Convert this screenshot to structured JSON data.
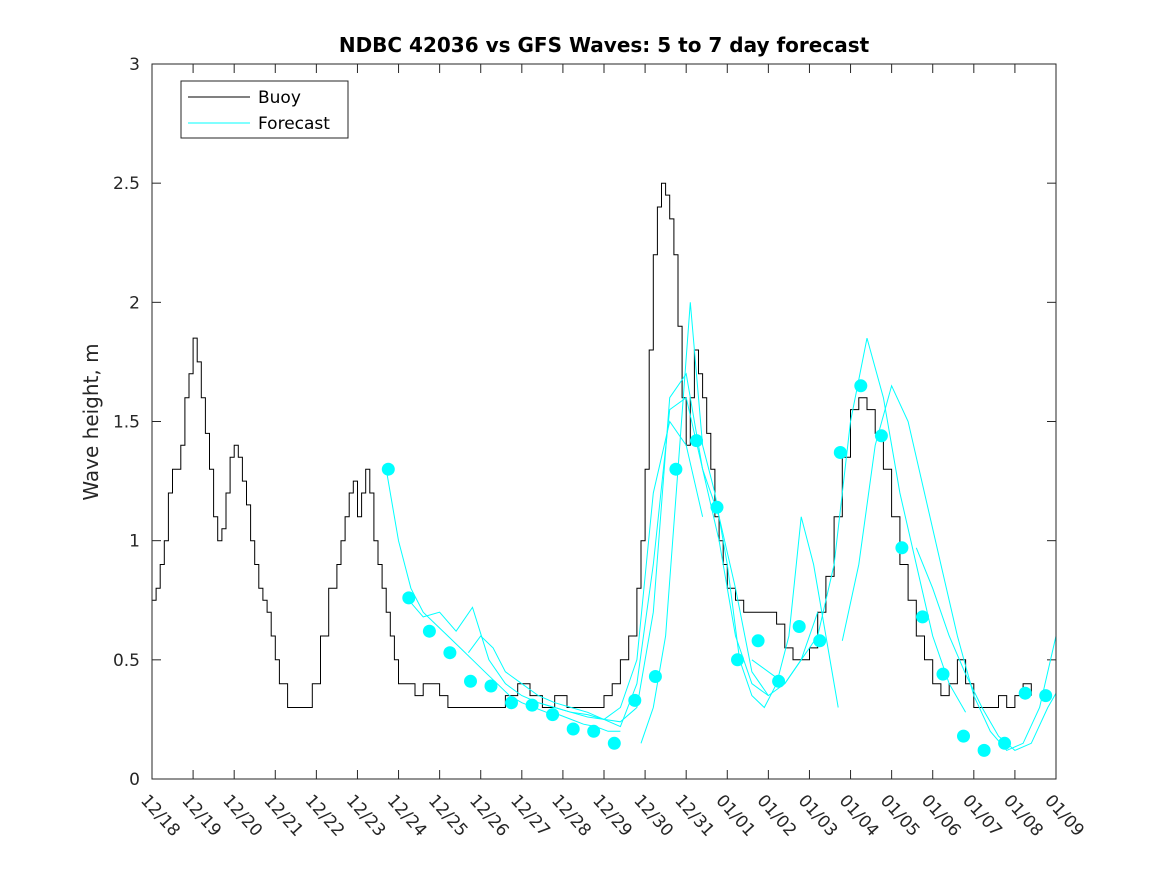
{
  "chart_data": {
    "type": "line",
    "title": "NDBC 42036 vs GFS Waves: 5 to 7 day forecast",
    "xlabel": "",
    "ylabel": "Wave height, m",
    "ylim": [
      0,
      3
    ],
    "xlim": [
      0,
      22
    ],
    "yticks": [
      0,
      0.5,
      1,
      1.5,
      2,
      2.5,
      3
    ],
    "ytick_labels": [
      "0",
      "0.5",
      "1",
      "1.5",
      "2",
      "2.5",
      "3"
    ],
    "xtick_labels": [
      "12/18",
      "12/19",
      "12/20",
      "12/21",
      "12/22",
      "12/23",
      "12/24",
      "12/25",
      "12/26",
      "12/27",
      "12/28",
      "12/29",
      "12/30",
      "12/31",
      "01/01",
      "01/02",
      "01/03",
      "01/04",
      "01/05",
      "01/06",
      "01/07",
      "01/08",
      "01/09"
    ],
    "legend": {
      "position": "top-left",
      "entries": [
        "Buoy",
        "Forecast"
      ]
    },
    "colors": {
      "buoy": "#000000",
      "forecast": "#00ffff",
      "marker": "#00ffff"
    },
    "buoy": {
      "name": "Buoy",
      "x": [
        0,
        0.1,
        0.2,
        0.3,
        0.4,
        0.5,
        0.6,
        0.7,
        0.8,
        0.9,
        1.0,
        1.1,
        1.2,
        1.3,
        1.4,
        1.5,
        1.6,
        1.7,
        1.8,
        1.9,
        2.0,
        2.1,
        2.2,
        2.3,
        2.4,
        2.5,
        2.6,
        2.7,
        2.8,
        2.9,
        3.0,
        3.1,
        3.3,
        3.5,
        3.7,
        3.9,
        4.1,
        4.3,
        4.5,
        4.6,
        4.7,
        4.8,
        4.9,
        5.0,
        5.1,
        5.2,
        5.3,
        5.4,
        5.5,
        5.6,
        5.7,
        5.8,
        5.9,
        6.0,
        6.2,
        6.4,
        6.6,
        6.8,
        7.0,
        7.2,
        7.4,
        7.6,
        7.8,
        8.0,
        8.3,
        8.6,
        8.9,
        9.2,
        9.5,
        9.8,
        10.1,
        10.4,
        10.7,
        11.0,
        11.2,
        11.4,
        11.6,
        11.8,
        11.9,
        12.0,
        12.1,
        12.2,
        12.3,
        12.4,
        12.5,
        12.6,
        12.7,
        12.8,
        12.9,
        13.0,
        13.1,
        13.2,
        13.3,
        13.4,
        13.5,
        13.6,
        13.7,
        13.8,
        13.9,
        14.0,
        14.2,
        14.4,
        14.6,
        14.8,
        15.0,
        15.2,
        15.4,
        15.6,
        15.8,
        16.0,
        16.2,
        16.4,
        16.6,
        16.8,
        17.0,
        17.2,
        17.4,
        17.6,
        17.8,
        18.0,
        18.2,
        18.4,
        18.6,
        18.8,
        19.0,
        19.2,
        19.4,
        19.6,
        19.8,
        20.0,
        20.2,
        20.4,
        20.6,
        20.8,
        21.0,
        21.2,
        21.4
      ],
      "y": [
        0.75,
        0.8,
        0.9,
        1.0,
        1.2,
        1.3,
        1.3,
        1.4,
        1.6,
        1.7,
        1.85,
        1.75,
        1.6,
        1.45,
        1.3,
        1.1,
        1.0,
        1.05,
        1.2,
        1.35,
        1.4,
        1.35,
        1.25,
        1.15,
        1.0,
        0.9,
        0.8,
        0.75,
        0.7,
        0.6,
        0.5,
        0.4,
        0.3,
        0.3,
        0.3,
        0.4,
        0.6,
        0.8,
        0.9,
        1.0,
        1.1,
        1.2,
        1.25,
        1.1,
        1.2,
        1.3,
        1.2,
        1.0,
        0.9,
        0.8,
        0.7,
        0.6,
        0.5,
        0.4,
        0.4,
        0.35,
        0.4,
        0.4,
        0.35,
        0.3,
        0.3,
        0.3,
        0.3,
        0.3,
        0.3,
        0.35,
        0.4,
        0.35,
        0.3,
        0.35,
        0.3,
        0.3,
        0.3,
        0.35,
        0.4,
        0.5,
        0.6,
        0.8,
        1.0,
        1.3,
        1.8,
        2.2,
        2.4,
        2.5,
        2.45,
        2.35,
        2.2,
        1.9,
        1.6,
        1.4,
        1.6,
        1.8,
        1.7,
        1.6,
        1.45,
        1.3,
        1.1,
        1.0,
        0.9,
        0.8,
        0.75,
        0.7,
        0.7,
        0.7,
        0.7,
        0.65,
        0.55,
        0.5,
        0.5,
        0.55,
        0.7,
        0.85,
        1.1,
        1.35,
        1.55,
        1.6,
        1.55,
        1.45,
        1.3,
        1.1,
        0.9,
        0.75,
        0.6,
        0.5,
        0.4,
        0.35,
        0.4,
        0.5,
        0.4,
        0.3,
        0.3,
        0.3,
        0.35,
        0.3,
        0.35,
        0.4,
        0.35
      ]
    },
    "forecast_series": [
      {
        "name": "Forecast",
        "x": [
          5.7,
          6.0,
          6.3,
          6.6,
          6.9,
          7.2,
          7.5,
          7.8,
          8.1,
          8.4,
          8.7,
          9.0,
          9.3,
          9.6,
          9.9,
          10.2,
          10.5,
          10.8,
          11.1,
          11.4
        ],
        "y": [
          1.3,
          1.0,
          0.8,
          0.7,
          0.65,
          0.6,
          0.55,
          0.5,
          0.45,
          0.4,
          0.35,
          0.32,
          0.3,
          0.28,
          0.27,
          0.25,
          0.23,
          0.22,
          0.2,
          0.2
        ]
      },
      {
        "name": "Forecast",
        "x": [
          6.2,
          6.6,
          7.0,
          7.4,
          7.8,
          8.2,
          8.6,
          9.0,
          9.4,
          9.8,
          10.2,
          10.6,
          11.0,
          11.4,
          11.8,
          12.2,
          12.6,
          13.0,
          13.4
        ],
        "y": [
          0.76,
          0.68,
          0.7,
          0.62,
          0.72,
          0.5,
          0.4,
          0.35,
          0.32,
          0.3,
          0.28,
          0.27,
          0.25,
          0.3,
          0.5,
          1.2,
          1.5,
          1.4,
          1.1
        ]
      },
      {
        "name": "Forecast",
        "x": [
          7.7,
          8.0,
          8.3,
          8.6,
          9.0,
          9.4,
          9.8,
          10.2,
          10.6,
          11.0,
          11.4,
          11.8,
          12.2,
          12.6,
          13.0,
          13.4,
          13.8,
          14.2,
          14.6,
          15.0
        ],
        "y": [
          0.53,
          0.6,
          0.55,
          0.45,
          0.4,
          0.35,
          0.32,
          0.3,
          0.28,
          0.25,
          0.22,
          0.4,
          0.9,
          1.55,
          1.6,
          1.3,
          1.0,
          0.6,
          0.4,
          0.35
        ]
      },
      {
        "name": "Forecast",
        "x": [
          9.4,
          9.8,
          10.2,
          10.6,
          11.0,
          11.4,
          11.8,
          12.2,
          12.6,
          13.0,
          13.4,
          13.8,
          14.2,
          14.6,
          15.0,
          15.4,
          15.8,
          16.2
        ],
        "y": [
          0.32,
          0.3,
          0.28,
          0.26,
          0.25,
          0.24,
          0.3,
          0.7,
          1.6,
          1.7,
          1.3,
          1.1,
          0.8,
          0.45,
          0.35,
          0.4,
          0.5,
          0.7
        ]
      },
      {
        "name": "Forecast",
        "x": [
          11.9,
          12.2,
          12.5,
          12.8,
          13.1,
          13.4,
          13.7,
          14.0,
          14.3,
          14.6,
          14.9,
          15.2,
          15.5,
          15.8,
          16.1,
          16.4,
          16.7
        ],
        "y": [
          0.15,
          0.3,
          0.6,
          1.3,
          2.0,
          1.4,
          1.2,
          0.9,
          0.5,
          0.35,
          0.3,
          0.4,
          0.6,
          1.1,
          0.9,
          0.6,
          0.3
        ]
      },
      {
        "name": "Forecast",
        "x": [
          14.6,
          15.0,
          15.4,
          15.8,
          16.2,
          16.6,
          17.0,
          17.4,
          17.8,
          18.2,
          18.6,
          19.0,
          19.4,
          19.8
        ],
        "y": [
          0.5,
          0.45,
          0.4,
          0.5,
          0.6,
          0.9,
          1.5,
          1.85,
          1.6,
          1.2,
          0.9,
          0.6,
          0.4,
          0.28
        ]
      },
      {
        "name": "Forecast",
        "x": [
          16.8,
          17.2,
          17.6,
          18.0,
          18.4,
          18.8,
          19.2,
          19.6,
          20.0,
          20.4,
          20.8,
          21.2,
          21.6,
          22.0
        ],
        "y": [
          0.58,
          0.9,
          1.4,
          1.65,
          1.5,
          1.2,
          0.9,
          0.6,
          0.35,
          0.2,
          0.12,
          0.15,
          0.3,
          0.6
        ]
      },
      {
        "name": "Forecast",
        "x": [
          18.6,
          19.0,
          19.4,
          19.8,
          20.2,
          20.6,
          21.0,
          21.4,
          21.8,
          22.0
        ],
        "y": [
          0.97,
          0.8,
          0.6,
          0.44,
          0.3,
          0.18,
          0.12,
          0.15,
          0.3,
          0.36
        ]
      }
    ],
    "markers": {
      "name": "Forecast",
      "x": [
        5.75,
        6.25,
        6.75,
        7.25,
        7.75,
        8.25,
        8.75,
        9.25,
        9.75,
        10.25,
        10.75,
        11.25,
        11.75,
        12.25,
        12.75,
        13.25,
        13.75,
        14.25,
        14.75,
        15.25,
        15.75,
        16.25,
        16.75,
        17.25,
        17.75,
        18.25,
        18.75,
        19.25,
        19.75,
        20.25,
        20.75,
        21.25,
        21.75
      ],
      "y": [
        1.3,
        0.76,
        0.62,
        0.53,
        0.41,
        0.39,
        0.32,
        0.31,
        0.27,
        0.21,
        0.2,
        0.15,
        0.33,
        0.43,
        1.3,
        1.42,
        1.14,
        0.5,
        0.58,
        0.41,
        0.64,
        0.58,
        1.37,
        1.65,
        1.44,
        0.97,
        0.68,
        0.44,
        0.18,
        0.12,
        0.15,
        0.36,
        0.35
      ]
    }
  }
}
